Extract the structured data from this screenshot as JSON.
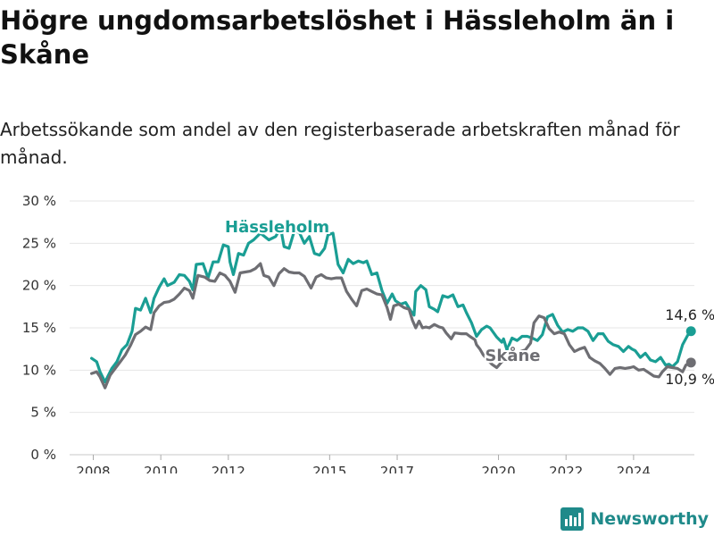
{
  "header": {
    "title": "Högre ungdomsarbetslöshet i Hässleholm än i Skåne",
    "subtitle": "Arbetssökande som andel av den registerbaserade arbetskraften månad för månad."
  },
  "brand": {
    "name": "Newsworthy",
    "icon": "newsworthy-logo-icon",
    "color": "#1f8a8a"
  },
  "chart_data": {
    "type": "line",
    "title": "Högre ungdomsarbetslöshet i Hässleholm än i Skåne",
    "subtitle": "Arbetssökande som andel av den registerbaserade arbetskraften månad för månad.",
    "xlabel": "",
    "ylabel": "",
    "xlim": [
      2007.3,
      2025.8
    ],
    "ylim": [
      0,
      30
    ],
    "grid": true,
    "x_ticks": [
      {
        "value": 2008,
        "label": "2008"
      },
      {
        "value": 2010,
        "label": "2010"
      },
      {
        "value": 2012,
        "label": "2012"
      },
      {
        "value": 2015,
        "label": "2015"
      },
      {
        "value": 2017,
        "label": "2017"
      },
      {
        "value": 2020,
        "label": "2020"
      },
      {
        "value": 2022,
        "label": "2022"
      },
      {
        "value": 2024,
        "label": "2024"
      }
    ],
    "y_ticks": [
      {
        "value": 0,
        "label": "0 %"
      },
      {
        "value": 5,
        "label": "5 %"
      },
      {
        "value": 10,
        "label": "10 %"
      },
      {
        "value": 15,
        "label": "15 %"
      },
      {
        "value": 20,
        "label": "20 %"
      },
      {
        "value": 25,
        "label": "25 %"
      },
      {
        "value": 30,
        "label": "30 %"
      }
    ],
    "series": [
      {
        "name": "Hässleholm",
        "label": "Hässleholm",
        "color": "#1a9e94",
        "label_anchor": {
          "x": 2011.9,
          "y": 26.3
        },
        "end_label": "14,6 %",
        "points": [
          [
            2007.95,
            11.4
          ],
          [
            2008.1,
            11.0
          ],
          [
            2008.2,
            9.8
          ],
          [
            2008.35,
            8.6
          ],
          [
            2008.55,
            10.2
          ],
          [
            2008.7,
            11.0
          ],
          [
            2008.85,
            12.4
          ],
          [
            2009.0,
            13.0
          ],
          [
            2009.15,
            14.6
          ],
          [
            2009.25,
            17.3
          ],
          [
            2009.4,
            17.1
          ],
          [
            2009.55,
            18.5
          ],
          [
            2009.7,
            16.8
          ],
          [
            2009.8,
            18.5
          ],
          [
            2009.95,
            19.8
          ],
          [
            2010.1,
            20.8
          ],
          [
            2010.2,
            20.0
          ],
          [
            2010.4,
            20.4
          ],
          [
            2010.55,
            21.3
          ],
          [
            2010.7,
            21.2
          ],
          [
            2010.85,
            20.5
          ],
          [
            2010.95,
            19.5
          ],
          [
            2011.05,
            22.5
          ],
          [
            2011.25,
            22.6
          ],
          [
            2011.4,
            20.9
          ],
          [
            2011.55,
            22.8
          ],
          [
            2011.7,
            22.8
          ],
          [
            2011.85,
            24.8
          ],
          [
            2012.0,
            24.6
          ],
          [
            2012.05,
            22.8
          ],
          [
            2012.15,
            21.3
          ],
          [
            2012.3,
            23.8
          ],
          [
            2012.45,
            23.6
          ],
          [
            2012.6,
            25.0
          ],
          [
            2012.75,
            25.4
          ],
          [
            2012.95,
            26.2
          ],
          [
            2013.2,
            25.4
          ],
          [
            2013.4,
            25.8
          ],
          [
            2013.55,
            26.8
          ],
          [
            2013.65,
            24.6
          ],
          [
            2013.8,
            24.4
          ],
          [
            2013.95,
            26.4
          ],
          [
            2014.1,
            26.3
          ],
          [
            2014.25,
            25.0
          ],
          [
            2014.4,
            25.8
          ],
          [
            2014.55,
            23.8
          ],
          [
            2014.7,
            23.6
          ],
          [
            2014.85,
            24.4
          ],
          [
            2014.95,
            26.0
          ],
          [
            2015.1,
            26.2
          ],
          [
            2015.25,
            22.5
          ],
          [
            2015.4,
            21.5
          ],
          [
            2015.55,
            23.1
          ],
          [
            2015.7,
            22.6
          ],
          [
            2015.85,
            22.9
          ],
          [
            2016.0,
            22.7
          ],
          [
            2016.1,
            22.9
          ],
          [
            2016.25,
            21.3
          ],
          [
            2016.4,
            21.5
          ],
          [
            2016.55,
            19.4
          ],
          [
            2016.7,
            17.9
          ],
          [
            2016.85,
            19.0
          ],
          [
            2016.95,
            18.2
          ],
          [
            2017.1,
            17.8
          ],
          [
            2017.25,
            18.0
          ],
          [
            2017.4,
            17.0
          ],
          [
            2017.5,
            16.5
          ],
          [
            2017.55,
            19.3
          ],
          [
            2017.7,
            20.0
          ],
          [
            2017.85,
            19.5
          ],
          [
            2017.95,
            17.5
          ],
          [
            2018.1,
            17.2
          ],
          [
            2018.2,
            16.9
          ],
          [
            2018.35,
            18.8
          ],
          [
            2018.5,
            18.6
          ],
          [
            2018.65,
            18.9
          ],
          [
            2018.8,
            17.5
          ],
          [
            2018.95,
            17.7
          ],
          [
            2019.05,
            16.8
          ],
          [
            2019.2,
            15.6
          ],
          [
            2019.35,
            14.0
          ],
          [
            2019.5,
            14.8
          ],
          [
            2019.65,
            15.2
          ],
          [
            2019.75,
            15.0
          ],
          [
            2019.95,
            13.9
          ],
          [
            2020.1,
            13.3
          ],
          [
            2020.15,
            13.7
          ],
          [
            2020.25,
            12.4
          ],
          [
            2020.4,
            13.8
          ],
          [
            2020.55,
            13.5
          ],
          [
            2020.7,
            14.0
          ],
          [
            2020.85,
            14.0
          ],
          [
            2021.0,
            13.8
          ],
          [
            2021.15,
            13.5
          ],
          [
            2021.3,
            14.2
          ],
          [
            2021.45,
            16.3
          ],
          [
            2021.6,
            16.6
          ],
          [
            2021.75,
            15.3
          ],
          [
            2021.9,
            14.5
          ],
          [
            2022.05,
            14.8
          ],
          [
            2022.2,
            14.6
          ],
          [
            2022.35,
            15.0
          ],
          [
            2022.5,
            15.0
          ],
          [
            2022.65,
            14.6
          ],
          [
            2022.8,
            13.5
          ],
          [
            2022.95,
            14.3
          ],
          [
            2023.1,
            14.3
          ],
          [
            2023.25,
            13.4
          ],
          [
            2023.4,
            13.0
          ],
          [
            2023.55,
            12.8
          ],
          [
            2023.7,
            12.2
          ],
          [
            2023.85,
            12.8
          ],
          [
            2023.95,
            12.5
          ],
          [
            2024.05,
            12.3
          ],
          [
            2024.2,
            11.5
          ],
          [
            2024.35,
            12.0
          ],
          [
            2024.5,
            11.2
          ],
          [
            2024.65,
            11.0
          ],
          [
            2024.8,
            11.5
          ],
          [
            2024.95,
            10.6
          ],
          [
            2025.05,
            10.7
          ],
          [
            2025.15,
            10.4
          ],
          [
            2025.3,
            11.0
          ],
          [
            2025.45,
            13.0
          ],
          [
            2025.6,
            14.1
          ],
          [
            2025.7,
            14.6
          ]
        ]
      },
      {
        "name": "Skåne",
        "label": "Skåne",
        "color": "#6e6e73",
        "label_anchor": {
          "x": 2019.6,
          "y": 11.1
        },
        "end_label": "10,9 %",
        "points": [
          [
            2007.95,
            9.6
          ],
          [
            2008.1,
            9.8
          ],
          [
            2008.2,
            9.2
          ],
          [
            2008.35,
            7.9
          ],
          [
            2008.5,
            9.4
          ],
          [
            2008.65,
            10.2
          ],
          [
            2008.8,
            11.0
          ],
          [
            2008.95,
            11.8
          ],
          [
            2009.1,
            12.9
          ],
          [
            2009.25,
            14.2
          ],
          [
            2009.4,
            14.6
          ],
          [
            2009.55,
            15.1
          ],
          [
            2009.7,
            14.8
          ],
          [
            2009.8,
            16.8
          ],
          [
            2009.95,
            17.6
          ],
          [
            2010.1,
            18.0
          ],
          [
            2010.25,
            18.1
          ],
          [
            2010.4,
            18.4
          ],
          [
            2010.55,
            19.0
          ],
          [
            2010.7,
            19.7
          ],
          [
            2010.85,
            19.4
          ],
          [
            2010.95,
            18.5
          ],
          [
            2011.1,
            21.2
          ],
          [
            2011.3,
            21.0
          ],
          [
            2011.45,
            20.6
          ],
          [
            2011.6,
            20.5
          ],
          [
            2011.75,
            21.5
          ],
          [
            2011.9,
            21.2
          ],
          [
            2012.05,
            20.5
          ],
          [
            2012.2,
            19.2
          ],
          [
            2012.35,
            21.5
          ],
          [
            2012.5,
            21.6
          ],
          [
            2012.65,
            21.7
          ],
          [
            2012.8,
            22.0
          ],
          [
            2012.95,
            22.6
          ],
          [
            2013.05,
            21.2
          ],
          [
            2013.2,
            21.0
          ],
          [
            2013.35,
            20.0
          ],
          [
            2013.5,
            21.4
          ],
          [
            2013.65,
            22.0
          ],
          [
            2013.8,
            21.6
          ],
          [
            2013.95,
            21.5
          ],
          [
            2014.1,
            21.5
          ],
          [
            2014.25,
            21.1
          ],
          [
            2014.45,
            19.7
          ],
          [
            2014.6,
            21.0
          ],
          [
            2014.75,
            21.3
          ],
          [
            2014.9,
            20.9
          ],
          [
            2015.05,
            20.8
          ],
          [
            2015.2,
            20.9
          ],
          [
            2015.35,
            20.9
          ],
          [
            2015.5,
            19.3
          ],
          [
            2015.65,
            18.4
          ],
          [
            2015.8,
            17.6
          ],
          [
            2015.95,
            19.4
          ],
          [
            2016.1,
            19.6
          ],
          [
            2016.25,
            19.3
          ],
          [
            2016.4,
            19.0
          ],
          [
            2016.55,
            18.9
          ],
          [
            2016.7,
            17.4
          ],
          [
            2016.8,
            16.0
          ],
          [
            2016.9,
            17.6
          ],
          [
            2017.05,
            17.8
          ],
          [
            2017.2,
            17.4
          ],
          [
            2017.35,
            17.2
          ],
          [
            2017.45,
            15.9
          ],
          [
            2017.55,
            15.0
          ],
          [
            2017.65,
            15.8
          ],
          [
            2017.75,
            15.0
          ],
          [
            2017.85,
            15.1
          ],
          [
            2017.95,
            15.0
          ],
          [
            2018.1,
            15.4
          ],
          [
            2018.25,
            15.1
          ],
          [
            2018.35,
            15.0
          ],
          [
            2018.45,
            14.4
          ],
          [
            2018.6,
            13.7
          ],
          [
            2018.7,
            14.4
          ],
          [
            2018.9,
            14.3
          ],
          [
            2019.05,
            14.3
          ],
          [
            2019.15,
            14.0
          ],
          [
            2019.3,
            13.6
          ],
          [
            2019.35,
            13.0
          ],
          [
            2019.45,
            12.5
          ],
          [
            2019.55,
            11.8
          ],
          [
            2019.8,
            10.7
          ],
          [
            2019.95,
            10.3
          ],
          [
            2020.1,
            11.0
          ],
          [
            2020.3,
            11.5
          ],
          [
            2020.5,
            11.7
          ],
          [
            2020.65,
            12.2
          ],
          [
            2020.8,
            12.4
          ],
          [
            2020.95,
            13.2
          ],
          [
            2021.05,
            15.6
          ],
          [
            2021.2,
            16.4
          ],
          [
            2021.35,
            16.2
          ],
          [
            2021.5,
            14.9
          ],
          [
            2021.65,
            14.3
          ],
          [
            2021.8,
            14.5
          ],
          [
            2021.95,
            14.3
          ],
          [
            2022.1,
            13.0
          ],
          [
            2022.25,
            12.2
          ],
          [
            2022.4,
            12.5
          ],
          [
            2022.55,
            12.7
          ],
          [
            2022.7,
            11.5
          ],
          [
            2022.85,
            11.1
          ],
          [
            2023.0,
            10.8
          ],
          [
            2023.15,
            10.2
          ],
          [
            2023.3,
            9.5
          ],
          [
            2023.45,
            10.2
          ],
          [
            2023.6,
            10.3
          ],
          [
            2023.75,
            10.2
          ],
          [
            2023.9,
            10.3
          ],
          [
            2024.0,
            10.4
          ],
          [
            2024.15,
            10.0
          ],
          [
            2024.3,
            10.1
          ],
          [
            2024.45,
            9.7
          ],
          [
            2024.6,
            9.3
          ],
          [
            2024.75,
            9.2
          ],
          [
            2024.85,
            9.8
          ],
          [
            2025.0,
            10.4
          ],
          [
            2025.15,
            10.3
          ],
          [
            2025.3,
            10.2
          ],
          [
            2025.45,
            9.8
          ],
          [
            2025.55,
            10.6
          ],
          [
            2025.7,
            10.9
          ]
        ]
      }
    ]
  }
}
